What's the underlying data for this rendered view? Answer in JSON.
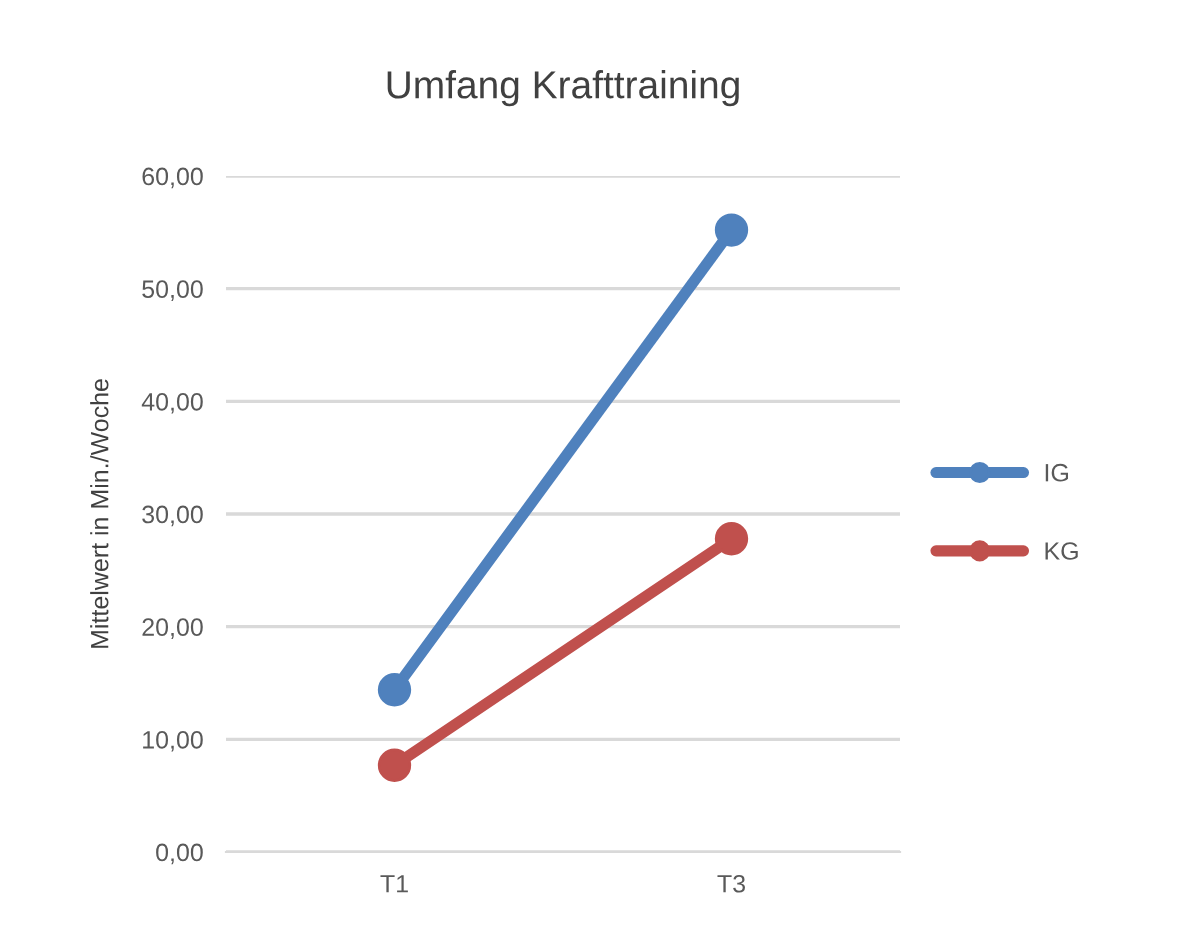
{
  "chart_data": {
    "type": "line",
    "title": "Umfang Krafttraining",
    "ylabel": "Mittelwert in Min./Woche",
    "categories": [
      "T1",
      "T3"
    ],
    "series": [
      {
        "name": "IG",
        "color": "#4f81bd",
        "values": [
          14.4,
          55.2
        ]
      },
      {
        "name": "KG",
        "color": "#c0504d",
        "values": [
          7.7,
          27.8
        ]
      }
    ],
    "ylim": [
      0,
      60
    ],
    "yticks": [
      {
        "value": 0,
        "label": "0,00"
      },
      {
        "value": 10,
        "label": "10,00"
      },
      {
        "value": 20,
        "label": "20,00"
      },
      {
        "value": 30,
        "label": "30,00"
      },
      {
        "value": 40,
        "label": "40,00"
      },
      {
        "value": 50,
        "label": "50,00"
      },
      {
        "value": 60,
        "label": "60,00"
      }
    ],
    "grid": "y",
    "legend": "right",
    "marker": "circle",
    "line_style": "solid"
  }
}
